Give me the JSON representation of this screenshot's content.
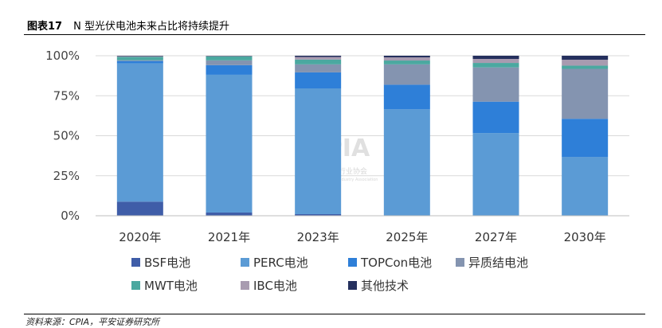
{
  "figure": {
    "number": "图表17",
    "title": "N 型光伏电池未来占比将持续提升",
    "source": "资料来源：CPIA，平安证券研究所"
  },
  "watermark": {
    "text": "CPIA",
    "subtext": "中国光伏行业协会",
    "subtext2": "China Photovoltaic Industry Association"
  },
  "chart_data": {
    "type": "bar",
    "stacked": true,
    "categories": [
      "2020年",
      "2021年",
      "2023年",
      "2025年",
      "2027年",
      "2030年"
    ],
    "yticks": [
      "0%",
      "25%",
      "50%",
      "75%",
      "100%"
    ],
    "ylim": [
      0,
      100
    ],
    "grid": true,
    "legend_position": "bottom",
    "series": [
      {
        "name": "BSF电池",
        "color": "#3f5da8",
        "values": [
          8.8,
          2.0,
          1.0,
          0.0,
          0.0,
          0.0
        ]
      },
      {
        "name": "PERC电池",
        "color": "#5b9bd5",
        "values": [
          86.4,
          86.1,
          78.6,
          66.5,
          51.7,
          36.8
        ]
      },
      {
        "name": "TOPCon电池",
        "color": "#2e7fd8",
        "values": [
          1.5,
          6.0,
          10.0,
          15.4,
          19.6,
          23.8
        ]
      },
      {
        "name": "异质结电池",
        "color": "#8494b0",
        "values": [
          0.5,
          3.0,
          5.0,
          12.7,
          21.4,
          31.2
        ]
      },
      {
        "name": "MWT电池",
        "color": "#4ba8a0",
        "values": [
          2.1,
          2.5,
          3.0,
          2.4,
          2.8,
          2.0
        ]
      },
      {
        "name": "IBC电池",
        "color": "#a89bb0",
        "values": [
          0.4,
          0.2,
          1.6,
          2.0,
          2.5,
          3.7
        ]
      },
      {
        "name": "其他技术",
        "color": "#25305e",
        "values": [
          0.3,
          0.2,
          0.8,
          1.0,
          2.0,
          2.5
        ]
      }
    ]
  }
}
